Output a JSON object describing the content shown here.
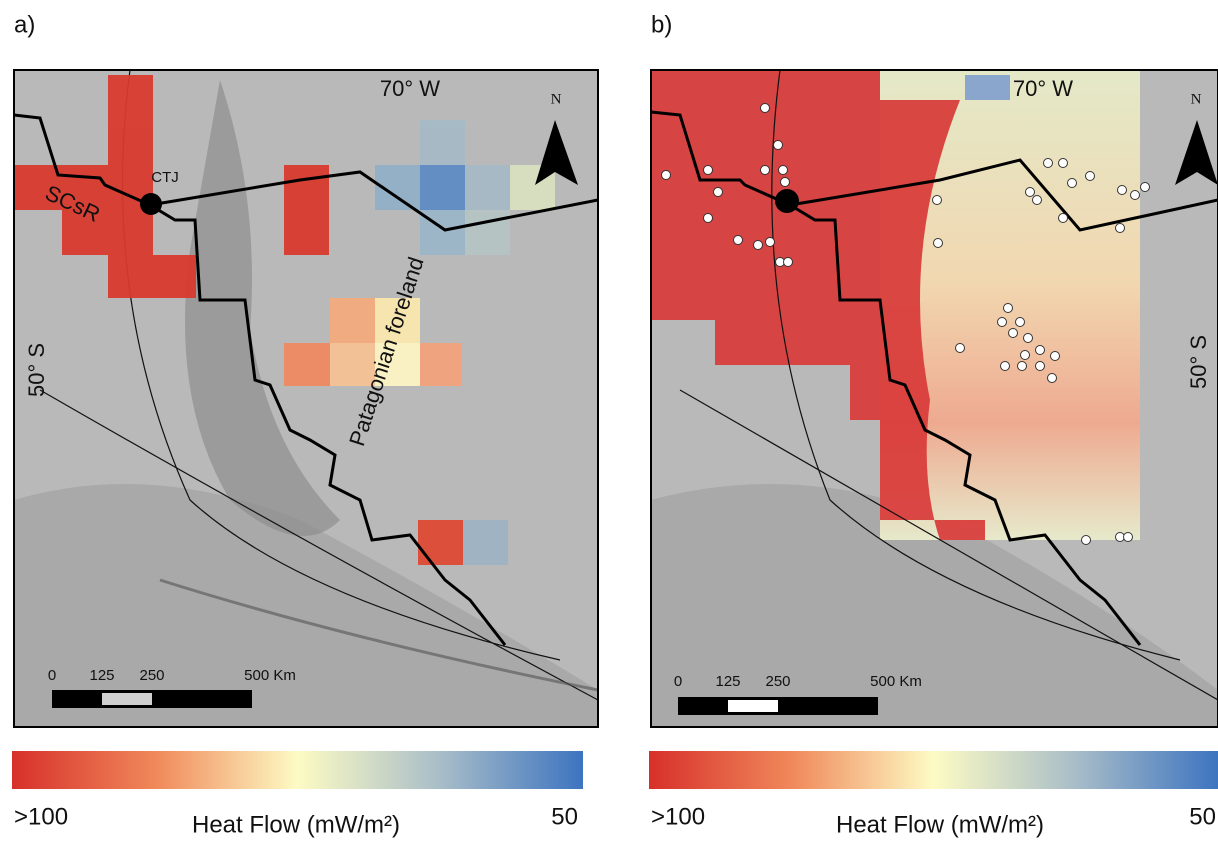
{
  "panels": [
    {
      "label": "a)",
      "longitude_label": "70° W",
      "north_label": "N",
      "latitude_label": "50° S",
      "annotations": [
        "SCsR",
        "CTJ",
        "Patagonian foreland"
      ],
      "scale_bar": {
        "ticks": [
          0,
          125,
          250
        ],
        "end_label": "500 Km"
      },
      "colorbar": {
        "min_label": ">100",
        "title": "Heat Flow (mW/m²)",
        "max_label": 50
      }
    },
    {
      "label": "b)",
      "longitude_label": "70° W",
      "north_label": "N",
      "latitude_label": "50° S",
      "scale_bar": {
        "ticks": [
          0,
          125,
          250
        ],
        "end_label": "500 Km"
      },
      "colorbar": {
        "min_label": ">100",
        "title": "Heat Flow (mW/m²)",
        "max_label": 50
      }
    }
  ]
}
